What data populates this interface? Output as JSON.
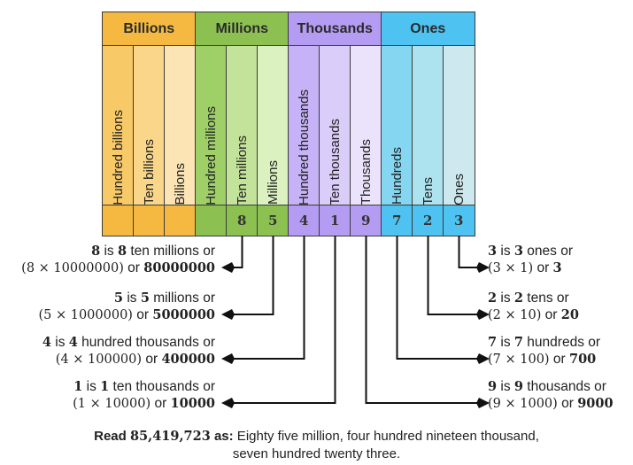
{
  "groups": [
    {
      "label": "Billions",
      "color": "#f5b942",
      "cols": [
        {
          "label": "Hundred billions",
          "color": "#f8c967",
          "digit": ""
        },
        {
          "label": "Ten billions",
          "color": "#fad68a",
          "digit": ""
        },
        {
          "label": "Billions",
          "color": "#fce4b5",
          "digit": ""
        }
      ]
    },
    {
      "label": "Millions",
      "color": "#8cc152",
      "cols": [
        {
          "label": "Hundred millions",
          "color": "#9fcf67",
          "digit": ""
        },
        {
          "label": "Ten millions",
          "color": "#c3e39a",
          "digit": "8"
        },
        {
          "label": "Millions",
          "color": "#dcf1c0",
          "digit": "5"
        }
      ]
    },
    {
      "label": "Thousands",
      "color": "#b59cf3",
      "cols": [
        {
          "label": "Hundred thousands",
          "color": "#c6b2f6",
          "digit": "4"
        },
        {
          "label": "Ten thousands",
          "color": "#dbcdfa",
          "digit": "1"
        },
        {
          "label": "Thousands",
          "color": "#ebe3fc",
          "digit": "9"
        }
      ]
    },
    {
      "label": "Ones",
      "color": "#4ec2f0",
      "cols": [
        {
          "label": "Hundreds",
          "color": "#85d6f1",
          "digit": "7"
        },
        {
          "label": "Tens",
          "color": "#ade3ee",
          "digit": "2"
        },
        {
          "label": "Ones",
          "color": "#cde9ef",
          "digit": "3"
        }
      ]
    }
  ],
  "explanations_left": [
    {
      "line1": [
        "8",
        " is ",
        "8",
        " ten millions or"
      ],
      "line2": [
        "(8 × 10000000)",
        " or ",
        "80000000"
      ]
    },
    {
      "line1": [
        "5",
        " is ",
        "5",
        " millions or"
      ],
      "line2": [
        "(5 × 1000000)",
        " or ",
        "5000000"
      ]
    },
    {
      "line1": [
        "4",
        " is ",
        "4",
        " hundred thousands or"
      ],
      "line2": [
        "(4 × 100000)",
        " or ",
        "400000"
      ]
    },
    {
      "line1": [
        "1",
        " is ",
        "1",
        " ten thousands or"
      ],
      "line2": [
        "(1 × 10000)",
        " or ",
        "10000"
      ]
    }
  ],
  "explanations_right": [
    {
      "line1": [
        "3",
        " is ",
        "3",
        " ones or"
      ],
      "line2": [
        "(3 × 1)",
        " or ",
        "3"
      ]
    },
    {
      "line1": [
        "2",
        " is ",
        "2",
        " tens or"
      ],
      "line2": [
        "(2 × 10)",
        " or ",
        "20"
      ]
    },
    {
      "line1": [
        "7",
        " is ",
        "7",
        " hundreds or"
      ],
      "line2": [
        "(7 × 100)",
        " or ",
        "700"
      ]
    },
    {
      "line1": [
        "9",
        " is ",
        "9",
        " thousands or"
      ],
      "line2": [
        "(9 × 1000)",
        " or ",
        "9000"
      ]
    }
  ],
  "footer": {
    "read": "Read ",
    "number": "85,419,723",
    "as": " as:",
    "words1": " Eighty five million, four hundred nineteen thousand,",
    "words2": "seven hundred twenty three."
  }
}
